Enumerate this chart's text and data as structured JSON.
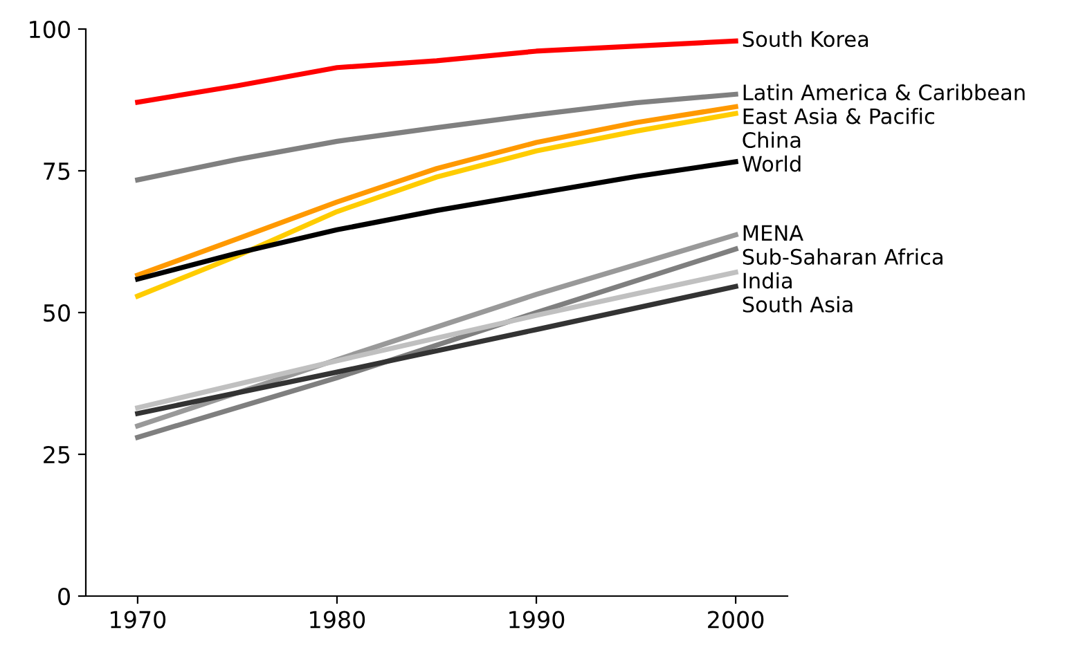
{
  "chart_data": {
    "type": "line",
    "x": [
      1970,
      1975,
      1980,
      1985,
      1990,
      1995,
      2000
    ],
    "xlim": [
      1967.4,
      2002.6
    ],
    "xticks": [
      1970,
      1980,
      1990,
      2000
    ],
    "ylim": [
      0,
      100
    ],
    "yticks": [
      0,
      25,
      50,
      75,
      100
    ],
    "grid": false,
    "legend": false,
    "marker": "none",
    "line_style": "solid",
    "series": [
      {
        "name": "South Korea",
        "color": "#ff0000",
        "values": [
          87.1,
          90,
          93.2,
          94.4,
          96.1,
          97,
          97.9
        ]
      },
      {
        "name": "Latin America & Caribbean",
        "color": "#808080",
        "values": [
          73.4,
          77,
          80.2,
          82.6,
          84.9,
          87,
          88.5
        ]
      },
      {
        "name": "East Asia & Pacific",
        "color": "#ff9900",
        "values": [
          56.6,
          63,
          69.5,
          75.4,
          80,
          83.5,
          86.3
        ]
      },
      {
        "name": "China",
        "color": "#ffcc00",
        "values": [
          52.9,
          60,
          67.8,
          73.9,
          78.5,
          82,
          85.1
        ]
      },
      {
        "name": "World",
        "color": "#000000",
        "values": [
          55.9,
          60.5,
          64.6,
          68,
          71,
          74,
          76.6
        ]
      },
      {
        "name": "MENA",
        "x": [
          1970,
          1980,
          1990,
          2000
        ],
        "color": "#999999",
        "values": [
          30,
          41.7,
          53.2,
          63.7
        ]
      },
      {
        "name": "Sub-Saharan Africa",
        "x": [
          1970,
          1980,
          1990,
          2000
        ],
        "color": "#7f7f7f",
        "values": [
          28,
          38.5,
          50,
          61.2
        ]
      },
      {
        "name": "India",
        "x": [
          1970,
          1980,
          1990,
          2000
        ],
        "color": "#c0c0c0",
        "values": [
          33.2,
          41.5,
          49.5,
          57.1
        ]
      },
      {
        "name": "South Asia",
        "x": [
          1970,
          1980,
          1990,
          2000
        ],
        "color": "#333333",
        "values": [
          32.2,
          39.5,
          47,
          54.6
        ]
      }
    ]
  }
}
